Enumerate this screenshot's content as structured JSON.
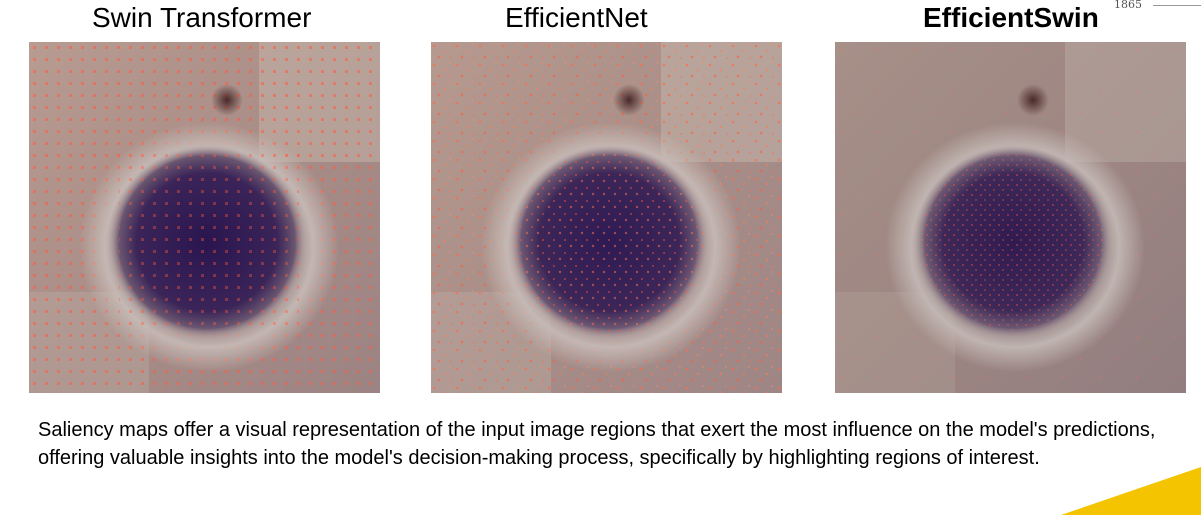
{
  "page_number": "1865",
  "panels": [
    {
      "title": "Swin Transformer"
    },
    {
      "title": "EfficientNet"
    },
    {
      "title": "EfficientSwin"
    }
  ],
  "caption": "Saliency maps offer a visual representation of the input image regions that exert the most influence on the model's predictions, offering valuable insights into the model's decision-making process, specifically by highlighting regions of interest.",
  "colors": {
    "background": "#ffffff",
    "cell_dark": "#2d1a52",
    "tissue": "#a28b84",
    "highlight": "#ff6a4a",
    "accent": "#f5c400"
  }
}
